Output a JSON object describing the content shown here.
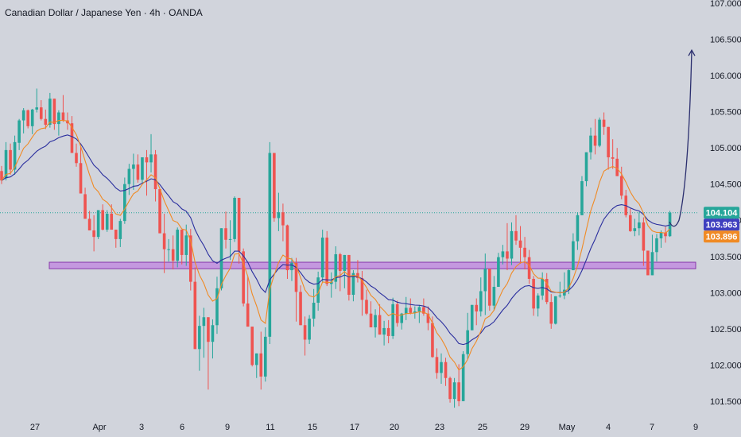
{
  "header": {
    "title": "Canadian Dollar / Japanese Yen · 4h · OANDA"
  },
  "colors": {
    "background": "#d1d4dc",
    "up": "#26a69a",
    "down": "#ef5350",
    "ma_fast": "#f08a24",
    "ma_slow": "#2a2e9e",
    "zone_fill": "#c28ee0",
    "zone_stroke": "#7b1fa2",
    "arrow": "#2a2e6e",
    "last_price": "#26a69a",
    "ma_slow_tag": "#3f3fbf",
    "ma_fast_tag": "#f08a24"
  },
  "chart_data": {
    "type": "candlestick",
    "symbol": "Canadian Dollar / Japanese Yen",
    "interval": "4h",
    "source": "OANDA",
    "ylim": [
      101.4,
      107.0
    ],
    "y_ticks": [
      "101.500",
      "102.000",
      "102.500",
      "103.000",
      "103.500",
      "104.000",
      "104.500",
      "105.000",
      "105.500",
      "106.000",
      "106.500",
      "107.000"
    ],
    "x_ticks": [
      "27",
      "Apr",
      "3",
      "6",
      "9",
      "11",
      "15",
      "17",
      "20",
      "23",
      "25",
      "29",
      "May",
      "4",
      "7",
      "9"
    ],
    "price_tags": [
      {
        "label": "104.104",
        "value": 104.104,
        "color_key": "last_price"
      },
      {
        "label": "103.963",
        "value": 103.963,
        "color_key": "ma_slow_tag"
      },
      {
        "label": "103.896",
        "value": 103.896,
        "color_key": "ma_fast_tag"
      }
    ],
    "support_zone": {
      "from": 103.33,
      "to": 103.42
    },
    "projection": {
      "from_value": 103.89,
      "to_value": 106.35
    },
    "candles_ohlc": [
      [
        104.68,
        104.75,
        104.5,
        104.55
      ],
      [
        104.58,
        105.08,
        104.55,
        104.97
      ],
      [
        104.97,
        105.06,
        104.63,
        104.7
      ],
      [
        104.7,
        105.17,
        104.63,
        105.08
      ],
      [
        105.07,
        105.4,
        104.97,
        105.38
      ],
      [
        105.38,
        105.55,
        105.2,
        105.52
      ],
      [
        105.52,
        105.53,
        105.27,
        105.3
      ],
      [
        105.3,
        105.54,
        105.19,
        105.53
      ],
      [
        105.53,
        105.82,
        105.49,
        105.56
      ],
      [
        105.56,
        105.66,
        105.38,
        105.4
      ],
      [
        105.4,
        105.53,
        105.26,
        105.32
      ],
      [
        105.32,
        105.76,
        105.28,
        105.68
      ],
      [
        105.68,
        105.67,
        105.25,
        105.33
      ],
      [
        105.33,
        105.52,
        105.17,
        105.49
      ],
      [
        105.49,
        105.73,
        105.36,
        105.38
      ],
      [
        105.38,
        105.49,
        105.25,
        105.34
      ],
      [
        105.34,
        105.44,
        104.95,
        104.93
      ],
      [
        104.93,
        105.06,
        104.74,
        104.79
      ],
      [
        104.79,
        105.01,
        104.4,
        104.37
      ],
      [
        104.36,
        104.45,
        104.1,
        104.02
      ],
      [
        104.02,
        104.13,
        103.91,
        103.86
      ],
      [
        103.86,
        104.07,
        103.57,
        103.77
      ],
      [
        103.77,
        104.14,
        103.74,
        104.14
      ],
      [
        104.14,
        104.22,
        103.86,
        103.87
      ],
      [
        103.87,
        104.14,
        103.84,
        104.09
      ],
      [
        104.09,
        104.22,
        103.87,
        103.87
      ],
      [
        103.87,
        103.86,
        103.62,
        103.74
      ],
      [
        103.74,
        104.02,
        103.63,
        103.99
      ],
      [
        103.99,
        104.59,
        103.95,
        104.5
      ],
      [
        104.5,
        104.78,
        104.35,
        104.71
      ],
      [
        104.71,
        104.92,
        104.42,
        104.77
      ],
      [
        104.77,
        104.91,
        104.52,
        104.56
      ],
      [
        104.56,
        104.85,
        104.52,
        104.87
      ],
      [
        104.87,
        104.97,
        104.34,
        104.8
      ],
      [
        104.8,
        105.19,
        104.66,
        104.91
      ],
      [
        104.91,
        104.97,
        104.26,
        104.43
      ],
      [
        104.43,
        104.33,
        103.88,
        103.82
      ],
      [
        103.82,
        104.09,
        103.27,
        103.6
      ],
      [
        103.6,
        103.74,
        103.43,
        103.6
      ],
      [
        103.6,
        103.79,
        103.32,
        103.44
      ],
      [
        103.44,
        103.9,
        103.35,
        103.87
      ],
      [
        103.87,
        103.87,
        103.39,
        103.52
      ],
      [
        103.52,
        103.94,
        103.37,
        103.79
      ],
      [
        103.79,
        103.88,
        103.03,
        103.15
      ],
      [
        103.15,
        103.35,
        102.24,
        102.22
      ],
      [
        102.22,
        102.68,
        101.92,
        102.54
      ],
      [
        102.54,
        102.79,
        102.1,
        102.66
      ],
      [
        102.66,
        102.59,
        101.66,
        102.32
      ],
      [
        102.32,
        102.63,
        102.09,
        102.55
      ],
      [
        102.55,
        103.22,
        102.43,
        103.06
      ],
      [
        103.06,
        103.81,
        103.03,
        103.89
      ],
      [
        103.89,
        104.12,
        103.61,
        103.73
      ],
      [
        103.73,
        104.0,
        103.45,
        103.74
      ],
      [
        103.74,
        104.33,
        103.7,
        104.31
      ],
      [
        104.31,
        104.31,
        103.4,
        103.57
      ],
      [
        103.57,
        103.61,
        102.81,
        102.85
      ],
      [
        102.85,
        103.22,
        102.62,
        102.53
      ],
      [
        102.53,
        102.52,
        101.98,
        102.0
      ],
      [
        102.0,
        102.15,
        101.82,
        102.16
      ],
      [
        102.16,
        102.46,
        101.66,
        101.84
      ],
      [
        101.84,
        102.52,
        101.77,
        102.39
      ],
      [
        102.39,
        105.08,
        102.29,
        104.93
      ],
      [
        104.93,
        104.65,
        103.98,
        104.03
      ],
      [
        104.03,
        104.38,
        103.85,
        104.11
      ],
      [
        104.11,
        104.23,
        103.71,
        103.93
      ],
      [
        103.93,
        103.94,
        103.19,
        103.31
      ],
      [
        103.31,
        103.48,
        103.16,
        103.41
      ],
      [
        103.41,
        103.48,
        102.6,
        103.01
      ],
      [
        103.01,
        103.1,
        102.62,
        102.55
      ],
      [
        102.55,
        102.67,
        102.13,
        102.35
      ],
      [
        102.35,
        102.69,
        102.29,
        102.64
      ],
      [
        102.64,
        103.05,
        102.53,
        102.86
      ],
      [
        102.86,
        103.29,
        102.75,
        103.21
      ],
      [
        103.21,
        103.87,
        103.15,
        103.76
      ],
      [
        103.76,
        103.85,
        103.09,
        103.12
      ],
      [
        103.12,
        103.28,
        102.93,
        103.15
      ],
      [
        103.15,
        103.64,
        103.05,
        103.53
      ],
      [
        103.53,
        103.55,
        103.02,
        103.3
      ],
      [
        103.3,
        103.5,
        103.06,
        103.52
      ],
      [
        103.52,
        103.46,
        102.89,
        102.97
      ],
      [
        102.97,
        103.31,
        102.88,
        103.27
      ],
      [
        103.27,
        103.45,
        103.14,
        103.2
      ],
      [
        103.2,
        103.3,
        102.68,
        102.9
      ],
      [
        102.9,
        103.04,
        102.69,
        102.71
      ],
      [
        102.71,
        102.88,
        102.52,
        102.52
      ],
      [
        102.52,
        102.77,
        102.38,
        102.69
      ],
      [
        102.69,
        102.84,
        102.56,
        102.42
      ],
      [
        102.42,
        102.61,
        102.27,
        102.51
      ],
      [
        102.51,
        102.62,
        102.3,
        102.4
      ],
      [
        102.4,
        102.93,
        102.36,
        102.84
      ],
      [
        102.84,
        102.89,
        102.53,
        102.58
      ],
      [
        102.58,
        102.72,
        102.49,
        102.71
      ],
      [
        102.71,
        102.94,
        102.62,
        102.79
      ],
      [
        102.79,
        102.92,
        102.7,
        102.72
      ],
      [
        102.72,
        102.81,
        102.64,
        102.74
      ],
      [
        102.74,
        102.83,
        102.58,
        102.8
      ],
      [
        102.8,
        102.92,
        102.68,
        102.71
      ],
      [
        102.71,
        102.81,
        102.48,
        102.58
      ],
      [
        102.58,
        102.67,
        102.1,
        102.11
      ],
      [
        102.11,
        102.23,
        101.81,
        101.89
      ],
      [
        101.89,
        102.16,
        101.74,
        102.04
      ],
      [
        102.04,
        102.1,
        101.71,
        101.82
      ],
      [
        101.82,
        101.84,
        101.48,
        101.53
      ],
      [
        101.53,
        101.82,
        101.41,
        101.76
      ],
      [
        101.76,
        102.01,
        101.43,
        101.5
      ],
      [
        101.5,
        102.19,
        101.6,
        102.15
      ],
      [
        102.15,
        102.72,
        102.08,
        102.48
      ],
      [
        102.48,
        102.82,
        102.5,
        102.83
      ],
      [
        102.83,
        102.92,
        102.55,
        102.74
      ],
      [
        102.74,
        103.21,
        102.67,
        103.02
      ],
      [
        103.02,
        103.54,
        102.69,
        103.33
      ],
      [
        103.33,
        103.11,
        102.75,
        102.82
      ],
      [
        102.82,
        103.23,
        102.75,
        103.08
      ],
      [
        103.08,
        103.55,
        103.13,
        103.49
      ],
      [
        103.49,
        103.66,
        103.39,
        103.57
      ],
      [
        103.57,
        103.96,
        103.31,
        103.47
      ],
      [
        103.47,
        103.97,
        103.38,
        103.85
      ],
      [
        103.85,
        104.07,
        103.66,
        103.72
      ],
      [
        103.72,
        103.92,
        103.4,
        103.62
      ],
      [
        103.62,
        103.77,
        103.32,
        103.49
      ],
      [
        103.49,
        103.59,
        103.12,
        103.19
      ],
      [
        103.19,
        103.23,
        102.68,
        102.78
      ],
      [
        102.78,
        102.99,
        102.67,
        102.96
      ],
      [
        102.96,
        103.28,
        102.9,
        103.19
      ],
      [
        103.19,
        103.27,
        102.84,
        102.87
      ],
      [
        102.87,
        102.98,
        102.5,
        102.57
      ],
      [
        102.57,
        102.95,
        102.56,
        102.95
      ],
      [
        102.95,
        103.15,
        102.93,
        102.96
      ],
      [
        102.96,
        103.28,
        102.91,
        103.04
      ],
      [
        103.04,
        103.32,
        102.98,
        103.31
      ],
      [
        103.31,
        103.82,
        103.35,
        103.71
      ],
      [
        103.71,
        104.11,
        103.59,
        104.07
      ],
      [
        104.07,
        104.61,
        104.07,
        104.54
      ],
      [
        104.54,
        104.91,
        104.47,
        104.94
      ],
      [
        104.94,
        105.28,
        104.84,
        105.17
      ],
      [
        105.17,
        105.4,
        104.91,
        105.03
      ],
      [
        105.03,
        105.42,
        105.01,
        105.39
      ],
      [
        105.39,
        105.49,
        105.18,
        105.29
      ],
      [
        105.29,
        105.07,
        104.7,
        104.87
      ],
      [
        104.87,
        105.12,
        104.71,
        104.85
      ],
      [
        104.85,
        105.0,
        104.68,
        104.61
      ],
      [
        104.61,
        104.74,
        104.29,
        104.34
      ],
      [
        104.34,
        104.42,
        104.04,
        104.07
      ],
      [
        104.07,
        104.16,
        103.84,
        103.85
      ],
      [
        103.85,
        104.02,
        103.78,
        103.89
      ],
      [
        103.89,
        104.11,
        103.79,
        103.97
      ],
      [
        103.97,
        104.04,
        103.37,
        103.58
      ],
      [
        103.58,
        103.47,
        103.26,
        103.24
      ],
      [
        103.24,
        103.8,
        103.25,
        103.56
      ],
      [
        103.56,
        103.81,
        103.43,
        103.75
      ],
      [
        103.75,
        103.86,
        103.62,
        103.83
      ],
      [
        103.83,
        103.91,
        103.69,
        103.78
      ],
      [
        103.78,
        104.13,
        103.77,
        104.104
      ]
    ]
  }
}
